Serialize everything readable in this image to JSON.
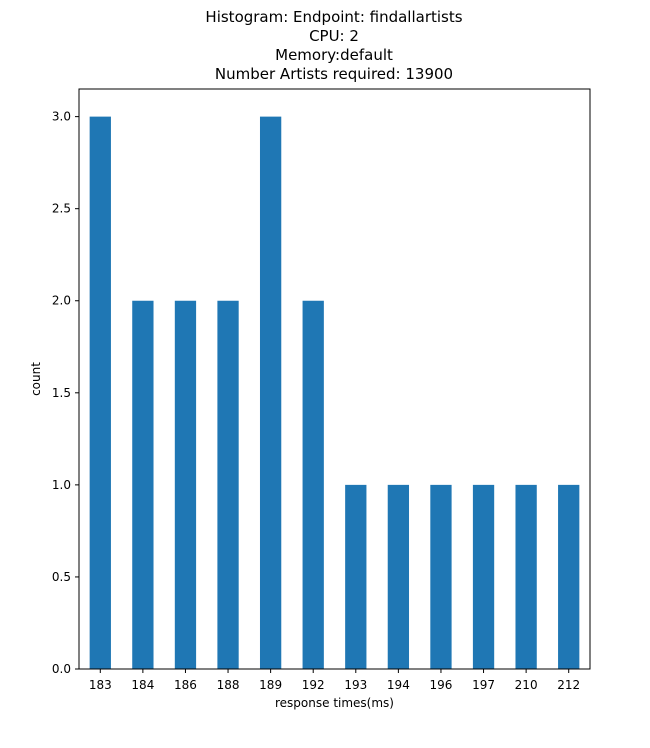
{
  "chart_data": {
    "type": "bar",
    "title_lines": [
      "Histogram: Endpoint: findallartists",
      "CPU: 2",
      "Memory:default",
      "Number Artists required: 13900"
    ],
    "xlabel": "response times(ms)",
    "ylabel": "count",
    "categories": [
      "183",
      "184",
      "186",
      "188",
      "189",
      "192",
      "193",
      "194",
      "196",
      "197",
      "210",
      "212"
    ],
    "values": [
      3,
      2,
      2,
      2,
      3,
      2,
      1,
      1,
      1,
      1,
      1,
      1
    ],
    "ylim": [
      0,
      3.15
    ],
    "yticks": [
      "0.0",
      "0.5",
      "1.0",
      "1.5",
      "2.0",
      "2.5",
      "3.0"
    ],
    "ytick_values": [
      0,
      0.5,
      1.0,
      1.5,
      2.0,
      2.5,
      3.0
    ],
    "bar_color": "#1f77b4",
    "grid": false,
    "legend": false
  }
}
